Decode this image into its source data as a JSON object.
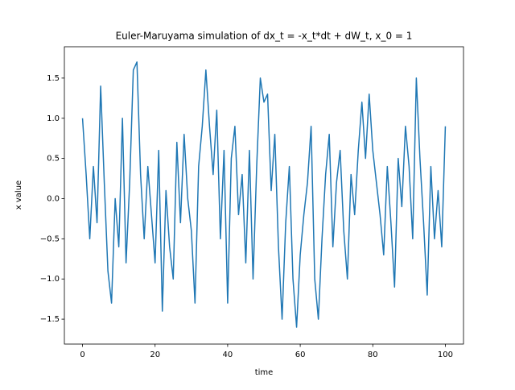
{
  "chart_data": {
    "type": "line",
    "title": "Euler-Maruyama simulation of dx_t = -x_t*dt + dW_t, x_0 = 1",
    "xlabel": "time",
    "ylabel": "x value",
    "x": [
      0,
      1,
      2,
      3,
      4,
      5,
      6,
      7,
      8,
      9,
      10,
      11,
      12,
      13,
      14,
      15,
      16,
      17,
      18,
      19,
      20,
      21,
      22,
      23,
      24,
      25,
      26,
      27,
      28,
      29,
      30,
      31,
      32,
      33,
      34,
      35,
      36,
      37,
      38,
      39,
      40,
      41,
      42,
      43,
      44,
      45,
      46,
      47,
      48,
      49,
      50,
      51,
      52,
      53,
      54,
      55,
      56,
      57,
      58,
      59,
      60,
      61,
      62,
      63,
      64,
      65,
      66,
      67,
      68,
      69,
      70,
      71,
      72,
      73,
      74,
      75,
      76,
      77,
      78,
      79,
      80,
      81,
      82,
      83,
      84,
      85,
      86,
      87,
      88,
      89,
      90,
      91,
      92,
      93,
      94,
      95,
      96,
      97,
      98,
      99,
      100
    ],
    "values": [
      1.0,
      0.3,
      -0.5,
      0.4,
      -0.3,
      1.4,
      0.2,
      -0.9,
      -1.3,
      0.0,
      -0.6,
      1.0,
      -0.8,
      0.2,
      1.6,
      1.7,
      0.3,
      -0.5,
      0.4,
      -0.2,
      -0.8,
      0.6,
      -1.4,
      0.1,
      -0.6,
      -1.0,
      0.7,
      -0.3,
      0.8,
      0.0,
      -0.4,
      -1.3,
      0.4,
      0.9,
      1.6,
      0.9,
      0.3,
      1.1,
      -0.5,
      0.6,
      -1.3,
      0.5,
      0.9,
      -0.2,
      0.3,
      -0.8,
      0.6,
      -1.0,
      0.4,
      1.5,
      1.2,
      1.3,
      0.1,
      0.8,
      -0.6,
      -1.5,
      -0.3,
      0.4,
      -1.0,
      -1.6,
      -0.7,
      -0.2,
      0.2,
      0.9,
      -1.0,
      -1.5,
      -0.5,
      0.3,
      0.8,
      -0.6,
      0.2,
      0.6,
      -0.4,
      -1.0,
      0.3,
      -0.2,
      0.6,
      1.2,
      0.5,
      1.3,
      0.6,
      0.2,
      -0.2,
      -0.7,
      0.4,
      -0.3,
      -1.1,
      0.5,
      -0.1,
      0.9,
      0.4,
      -0.5,
      1.5,
      0.5,
      -0.3,
      -1.2,
      0.4,
      -0.5,
      0.1,
      -0.6,
      0.9
    ],
    "color": "#1f77b4",
    "xlim": [
      -5,
      105
    ],
    "ylim": [
      -1.81,
      1.89
    ],
    "xticks": [
      0,
      20,
      40,
      60,
      80,
      100
    ],
    "yticks": [
      {
        "value": -1.5,
        "label": "−1.5"
      },
      {
        "value": -1.0,
        "label": "−1.0"
      },
      {
        "value": -0.5,
        "label": "−0.5"
      },
      {
        "value": 0.0,
        "label": "0.0"
      },
      {
        "value": 0.5,
        "label": "0.5"
      },
      {
        "value": 1.0,
        "label": "1.0"
      },
      {
        "value": 1.5,
        "label": "1.5"
      }
    ]
  }
}
